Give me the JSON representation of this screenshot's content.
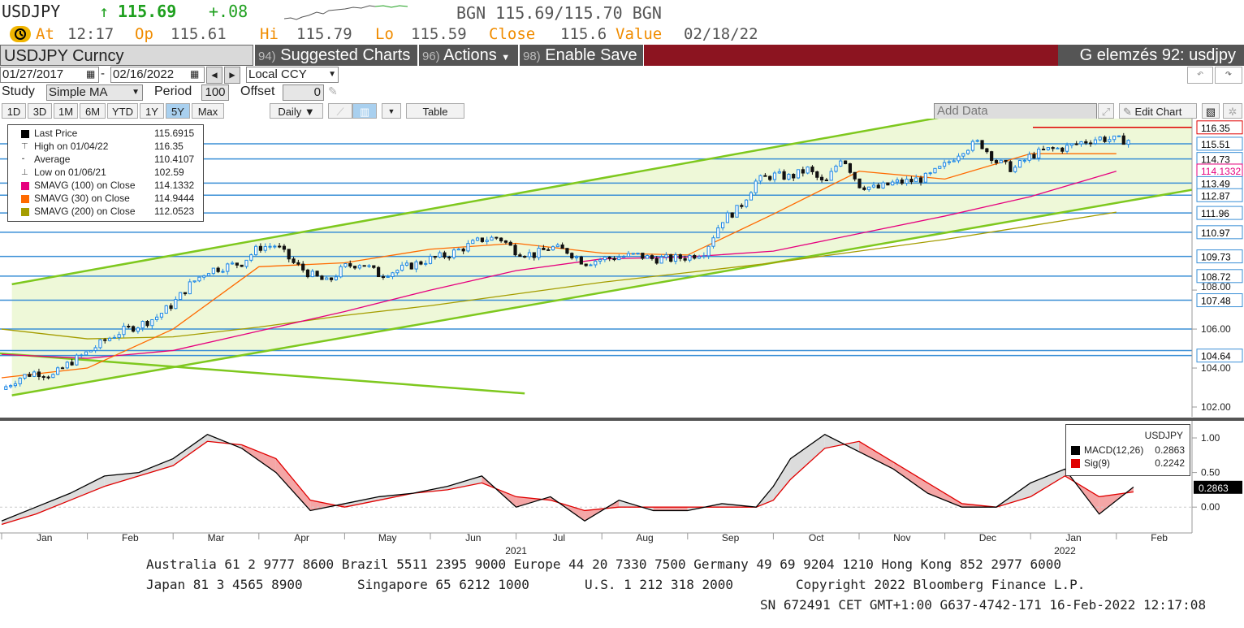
{
  "header": {
    "ticker": "USDJPY",
    "arrow": "↑",
    "last": "115.69",
    "change": "+.08",
    "source_quote": "BGN 115.69/115.70 BGN",
    "alarm_icon": "alarm-clock-icon",
    "at_label": "At",
    "at_value": "12:17",
    "op_label": "Op",
    "op_value": "115.61",
    "hi_label": "Hi",
    "hi_value": "115.79",
    "lo_label": "Lo",
    "lo_value": "115.59",
    "close_label": "Close",
    "close_value": "115.6",
    "value_label": "Value",
    "value_value": "02/18/22"
  },
  "toolbar": {
    "security": "USDJPY Curncy",
    "suggested_num": "94)",
    "suggested": "Suggested Charts",
    "actions_num": "96)",
    "actions": "Actions",
    "enable_num": "98)",
    "enable": "Enable Save",
    "title": "G elemzés 92: usdjpy"
  },
  "controls": {
    "date_from": "01/27/2017",
    "date_sep": "-",
    "date_to": "02/16/2022",
    "currency": "Local CCY",
    "study_label": "Study",
    "study": "Simple MA",
    "period_label": "Period",
    "period": "100",
    "offset_label": "Offset",
    "offset": "0",
    "ranges": [
      "1D",
      "3D",
      "1M",
      "6M",
      "YTD",
      "1Y",
      "5Y",
      "Max"
    ],
    "selected_range": "5Y",
    "frequency": "Daily ▼",
    "table": "Table",
    "add_data": "Add Data",
    "edit_chart": "Edit Chart"
  },
  "legend": [
    {
      "label": "Last Price",
      "value": "115.6915",
      "color": "#000000",
      "marker": "square"
    },
    {
      "label": "High on 01/04/22",
      "value": "116.35",
      "color": "#555555",
      "marker": "high"
    },
    {
      "label": "Average",
      "value": "110.4107",
      "color": "#555555",
      "marker": "avg"
    },
    {
      "label": "Low on 01/06/21",
      "value": "102.59",
      "color": "#555555",
      "marker": "low"
    },
    {
      "label": "SMAVG (100)  on Close",
      "value": "114.1332",
      "color": "#e6007e",
      "marker": "square"
    },
    {
      "label": "SMAVG (30)  on Close",
      "value": "114.9444",
      "color": "#ff6a00",
      "marker": "square"
    },
    {
      "label": "SMAVG (200)  on Close",
      "value": "112.0523",
      "color": "#a59d00",
      "marker": "square"
    }
  ],
  "macd_legend": {
    "title": "USDJPY",
    "rows": [
      {
        "label": "MACD(12,26)",
        "value": "0.2863",
        "color": "#000000"
      },
      {
        "label": "Sig(9)",
        "value": "0.2242",
        "color": "#e00000"
      }
    ]
  },
  "chart_data": [
    {
      "type": "line",
      "subtype": "candlestick price chart with moving averages, horizontal support/resistance lines and trend channel",
      "x_months": [
        "Jan",
        "Feb",
        "Mar",
        "Apr",
        "May",
        "Jun",
        "Jul",
        "Aug",
        "Sep",
        "Oct",
        "Nov",
        "Dec",
        "Jan",
        "Feb"
      ],
      "x_year_labels": [
        "2021",
        "2022"
      ],
      "ylim": [
        101.5,
        116.8
      ],
      "y_ticks": [
        "102.00",
        "104.00",
        "106.00",
        "108.00"
      ],
      "level_labels": [
        "116.35",
        "115.51",
        "114.73",
        "114.1332",
        "113.49",
        "112.87",
        "111.96",
        "110.97",
        "109.73",
        "108.72",
        "107.48",
        "104.64"
      ],
      "levels": [
        115.51,
        114.73,
        113.49,
        112.87,
        111.96,
        110.97,
        109.73,
        108.72,
        107.48,
        106.0,
        104.9,
        104.64
      ],
      "high_level": 116.35,
      "sma100_label": "114.1332",
      "series": [
        {
          "name": "Last Price",
          "color": "#000000",
          "x": [
            0.0,
            0.2,
            0.4,
            0.6,
            0.8,
            1.0,
            1.2,
            1.4,
            1.6,
            1.8,
            2.0,
            2.2,
            2.4,
            2.6,
            2.8,
            3.0,
            3.2,
            3.4,
            3.6,
            3.8,
            4.0,
            4.2,
            4.4,
            4.6,
            4.8,
            5.0,
            5.2,
            5.4,
            5.6,
            5.8,
            6.0,
            6.2,
            6.4,
            6.6,
            6.8,
            7.0,
            7.2,
            7.4,
            7.6,
            7.8,
            8.0,
            8.2,
            8.4,
            8.6,
            8.8,
            9.0,
            9.2,
            9.4,
            9.6,
            9.8,
            10.0,
            10.2,
            10.4,
            10.6,
            10.8,
            11.0,
            11.2,
            11.4,
            11.6,
            11.8,
            12.0,
            12.2,
            12.4,
            12.6,
            12.8,
            13.0,
            13.2
          ],
          "values": [
            102.9,
            103.5,
            103.8,
            103.6,
            104.3,
            104.8,
            105.4,
            105.9,
            106.2,
            106.6,
            107.3,
            108.3,
            109.0,
            109.2,
            109.4,
            110.2,
            110.3,
            109.4,
            108.8,
            108.4,
            109.2,
            109.4,
            108.8,
            109.0,
            109.3,
            109.6,
            109.8,
            110.2,
            110.6,
            110.7,
            110.0,
            109.8,
            110.2,
            110.0,
            109.4,
            109.6,
            109.7,
            109.8,
            109.6,
            109.6,
            109.7,
            110.0,
            111.6,
            112.2,
            113.6,
            113.9,
            113.8,
            114.2,
            113.4,
            114.9,
            113.4,
            113.2,
            113.5,
            113.6,
            113.8,
            114.4,
            115.2,
            115.6,
            114.6,
            114.2,
            114.9,
            115.2,
            115.3,
            115.6,
            115.8,
            115.7,
            115.7
          ]
        },
        {
          "name": "SMAVG (30)",
          "color": "#ff6a00",
          "x": [
            0.0,
            1.0,
            2.0,
            3.0,
            4.0,
            5.0,
            6.0,
            7.0,
            8.0,
            9.0,
            10.0,
            11.0,
            12.0,
            13.0
          ],
          "values": [
            103.5,
            104.0,
            106.0,
            109.2,
            109.4,
            110.1,
            110.4,
            109.9,
            109.8,
            111.9,
            114.1,
            113.7,
            115.0,
            115.0
          ]
        },
        {
          "name": "SMAVG (100)",
          "color": "#e6007e",
          "x": [
            0.0,
            1.0,
            2.0,
            3.0,
            4.0,
            5.0,
            6.0,
            7.0,
            8.0,
            9.0,
            10.0,
            11.0,
            12.0,
            13.0
          ],
          "values": [
            104.7,
            104.5,
            104.9,
            105.9,
            106.9,
            108.0,
            109.0,
            109.6,
            109.7,
            110.0,
            110.9,
            111.8,
            112.8,
            114.1
          ]
        },
        {
          "name": "SMAVG (200)",
          "color": "#a59d00",
          "x": [
            0.0,
            1.0,
            2.0,
            3.0,
            4.0,
            5.0,
            6.0,
            7.0,
            8.0,
            9.0,
            10.0,
            11.0,
            12.0,
            13.0
          ],
          "values": [
            106.0,
            105.5,
            105.6,
            106.1,
            106.7,
            107.2,
            107.8,
            108.4,
            108.9,
            109.4,
            110.0,
            110.6,
            111.3,
            112.0
          ]
        }
      ]
    },
    {
      "type": "line",
      "subtype": "MACD indicator",
      "ylim": [
        -0.35,
        1.2
      ],
      "y_ticks": [
        "1.00",
        "0.50",
        "0.00"
      ],
      "last_label": "0.2863",
      "series": [
        {
          "name": "MACD(12,26)",
          "color": "#000000",
          "x": [
            0.0,
            0.4,
            0.8,
            1.2,
            1.6,
            2.0,
            2.4,
            2.8,
            3.2,
            3.6,
            4.0,
            4.4,
            4.8,
            5.2,
            5.6,
            6.0,
            6.4,
            6.8,
            7.2,
            7.6,
            8.0,
            8.4,
            8.8,
            9.0,
            9.2,
            9.6,
            10.0,
            10.4,
            10.8,
            11.2,
            11.6,
            12.0,
            12.4,
            12.8,
            13.2
          ],
          "values": [
            -0.2,
            0.0,
            0.2,
            0.45,
            0.5,
            0.7,
            1.05,
            0.85,
            0.5,
            -0.05,
            0.05,
            0.15,
            0.2,
            0.3,
            0.45,
            0.0,
            0.15,
            -0.2,
            0.1,
            -0.05,
            -0.05,
            0.05,
            0.0,
            0.3,
            0.7,
            1.05,
            0.8,
            0.55,
            0.2,
            0.0,
            0.0,
            0.35,
            0.55,
            -0.1,
            0.29
          ]
        },
        {
          "name": "Sig(9)",
          "color": "#e00000",
          "x": [
            0.0,
            0.4,
            0.8,
            1.2,
            1.6,
            2.0,
            2.4,
            2.8,
            3.2,
            3.6,
            4.0,
            4.4,
            4.8,
            5.2,
            5.6,
            6.0,
            6.4,
            6.8,
            7.2,
            7.6,
            8.0,
            8.4,
            8.8,
            9.0,
            9.2,
            9.6,
            10.0,
            10.4,
            10.8,
            11.2,
            11.6,
            12.0,
            12.4,
            12.8,
            13.2
          ],
          "values": [
            -0.25,
            -0.1,
            0.1,
            0.3,
            0.45,
            0.6,
            0.95,
            0.9,
            0.7,
            0.1,
            0.0,
            0.1,
            0.2,
            0.25,
            0.35,
            0.15,
            0.1,
            -0.05,
            0.0,
            0.0,
            0.0,
            0.0,
            0.0,
            0.1,
            0.4,
            0.85,
            0.95,
            0.65,
            0.35,
            0.05,
            0.0,
            0.15,
            0.45,
            0.15,
            0.22
          ]
        }
      ]
    }
  ],
  "footer": {
    "line1": "Australia 61 2 9777 8600 Brazil 5511 2395 9000 Europe 44 20 7330 7500 Germany 49 69 9204 1210 Hong Kong 852 2977 6000",
    "line2a": "Japan 81 3 4565 8900",
    "line2b": "Singapore 65 6212 1000",
    "line2c": "U.S. 1 212 318 2000",
    "line2d": "Copyright 2022 Bloomberg Finance L.P.",
    "line3": "SN 672491 CET  GMT+1:00 G637-4742-171 16-Feb-2022 12:17:08"
  },
  "colors": {
    "accent": "#f08c00",
    "up": "#1fa01f",
    "toolbar_red": "#8c1420",
    "channel": "#7ec81e",
    "level_line": "#3a8fd6",
    "channel_fill": "#eef8d8"
  }
}
